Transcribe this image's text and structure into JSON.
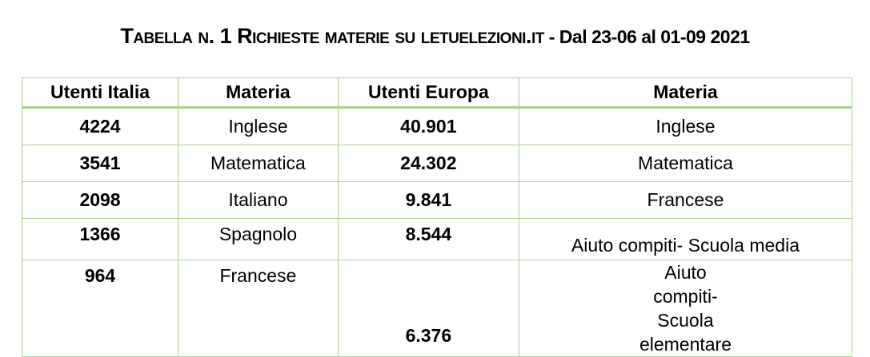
{
  "title": {
    "main": "Tabella n. 1 Richieste materie su letuelezioni.it",
    "dates": " - Dal 23-06 al 01-09 2021"
  },
  "table": {
    "headers": [
      "Utenti Italia",
      "Materia",
      "Utenti Europa",
      "Materia"
    ],
    "rows": [
      [
        "4224",
        "Inglese",
        "40.901",
        "Inglese"
      ],
      [
        "3541",
        "Matematica",
        "24.302",
        "Matematica"
      ],
      [
        "2098",
        "Italiano",
        "9.841",
        "Francese"
      ],
      [
        "1366",
        "Spagnolo",
        "8.544",
        "Aiuto compiti- Scuola media"
      ],
      [
        "964",
        "Francese",
        "6.376",
        "Aiuto compiti- Scuola elementare"
      ]
    ]
  }
}
